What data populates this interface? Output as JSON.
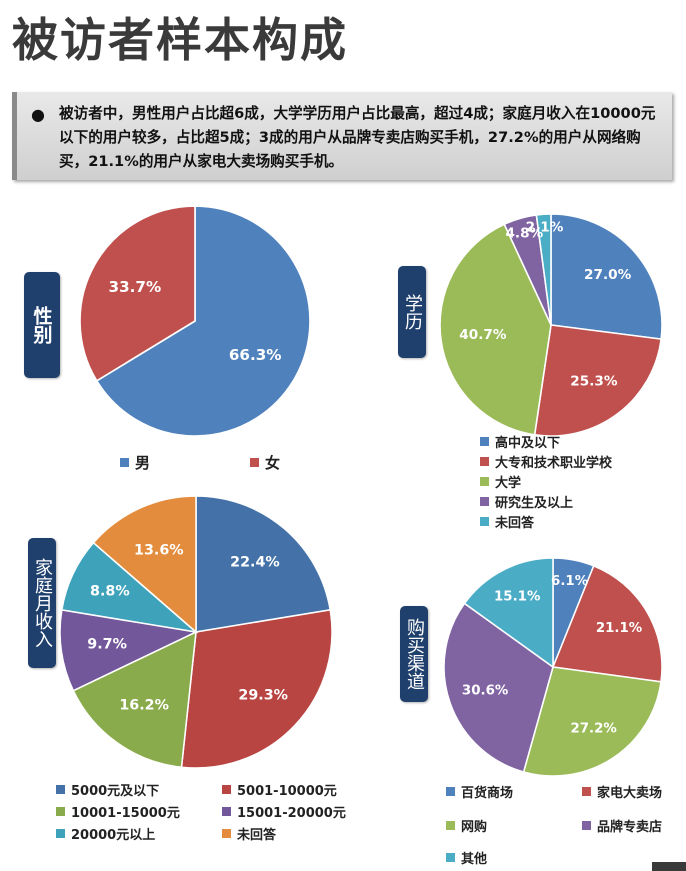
{
  "title": "被访者样本构成",
  "summary": "被访者中，男性用户占比超6成，大学学历用户占比最高，超过4成；家庭月收入在10000元以下的用户较多，占比超5成；3成的用户从品牌专卖店购买手机，27.2%的用户从网络购买，21.1%的用户从家电大卖场购买手机。",
  "bullet": "●",
  "chart_data": [
    {
      "type": "pie",
      "tag": "性别",
      "categories": [
        "男",
        "女"
      ],
      "values": [
        66.3,
        33.7
      ],
      "labels": [
        "66.3%",
        "33.7%"
      ],
      "colors": [
        "#4f81bd",
        "#c0504d"
      ],
      "legend_position": "bottom"
    },
    {
      "type": "pie",
      "tag": "学历",
      "categories": [
        "高中及以下",
        "大专和技术职业学校",
        "大学",
        "研究生及以上",
        "未回答"
      ],
      "values": [
        27.0,
        25.3,
        40.7,
        4.8,
        2.1
      ],
      "labels": [
        "27.0%",
        "25.3%",
        "40.7%",
        "4.8%",
        "2.1%"
      ],
      "colors": [
        "#4f81bd",
        "#c0504d",
        "#9bbb59",
        "#8064a2",
        "#4bacc6"
      ],
      "legend_position": "bottom"
    },
    {
      "type": "pie",
      "tag": "家庭月收入",
      "categories": [
        "5000元及以下",
        "5001-10000元",
        "10001-15000元",
        "15001-20000元",
        "20000元以上",
        "未回答"
      ],
      "values": [
        22.4,
        29.3,
        16.2,
        9.7,
        8.8,
        13.6
      ],
      "labels": [
        "22.4%",
        "29.3%",
        "16.2%",
        "9.7%",
        "8.8%",
        "13.6%"
      ],
      "colors": [
        "#4472a8",
        "#b94543",
        "#8aab4b",
        "#72589a",
        "#3ea2bb",
        "#e48c3d"
      ],
      "legend_position": "bottom"
    },
    {
      "type": "pie",
      "tag": "购买渠道",
      "categories": [
        "百货商场",
        "家电大卖场",
        "网购",
        "品牌专卖店",
        "其他"
      ],
      "values": [
        6.1,
        21.1,
        27.2,
        30.6,
        15.1
      ],
      "labels": [
        "6.1%",
        "21.1%",
        "27.2%",
        "30.6%",
        "15.1%"
      ],
      "colors": [
        "#4f81bd",
        "#c0504d",
        "#9bbb59",
        "#8064a2",
        "#4bacc6"
      ],
      "legend_position": "bottom"
    }
  ]
}
